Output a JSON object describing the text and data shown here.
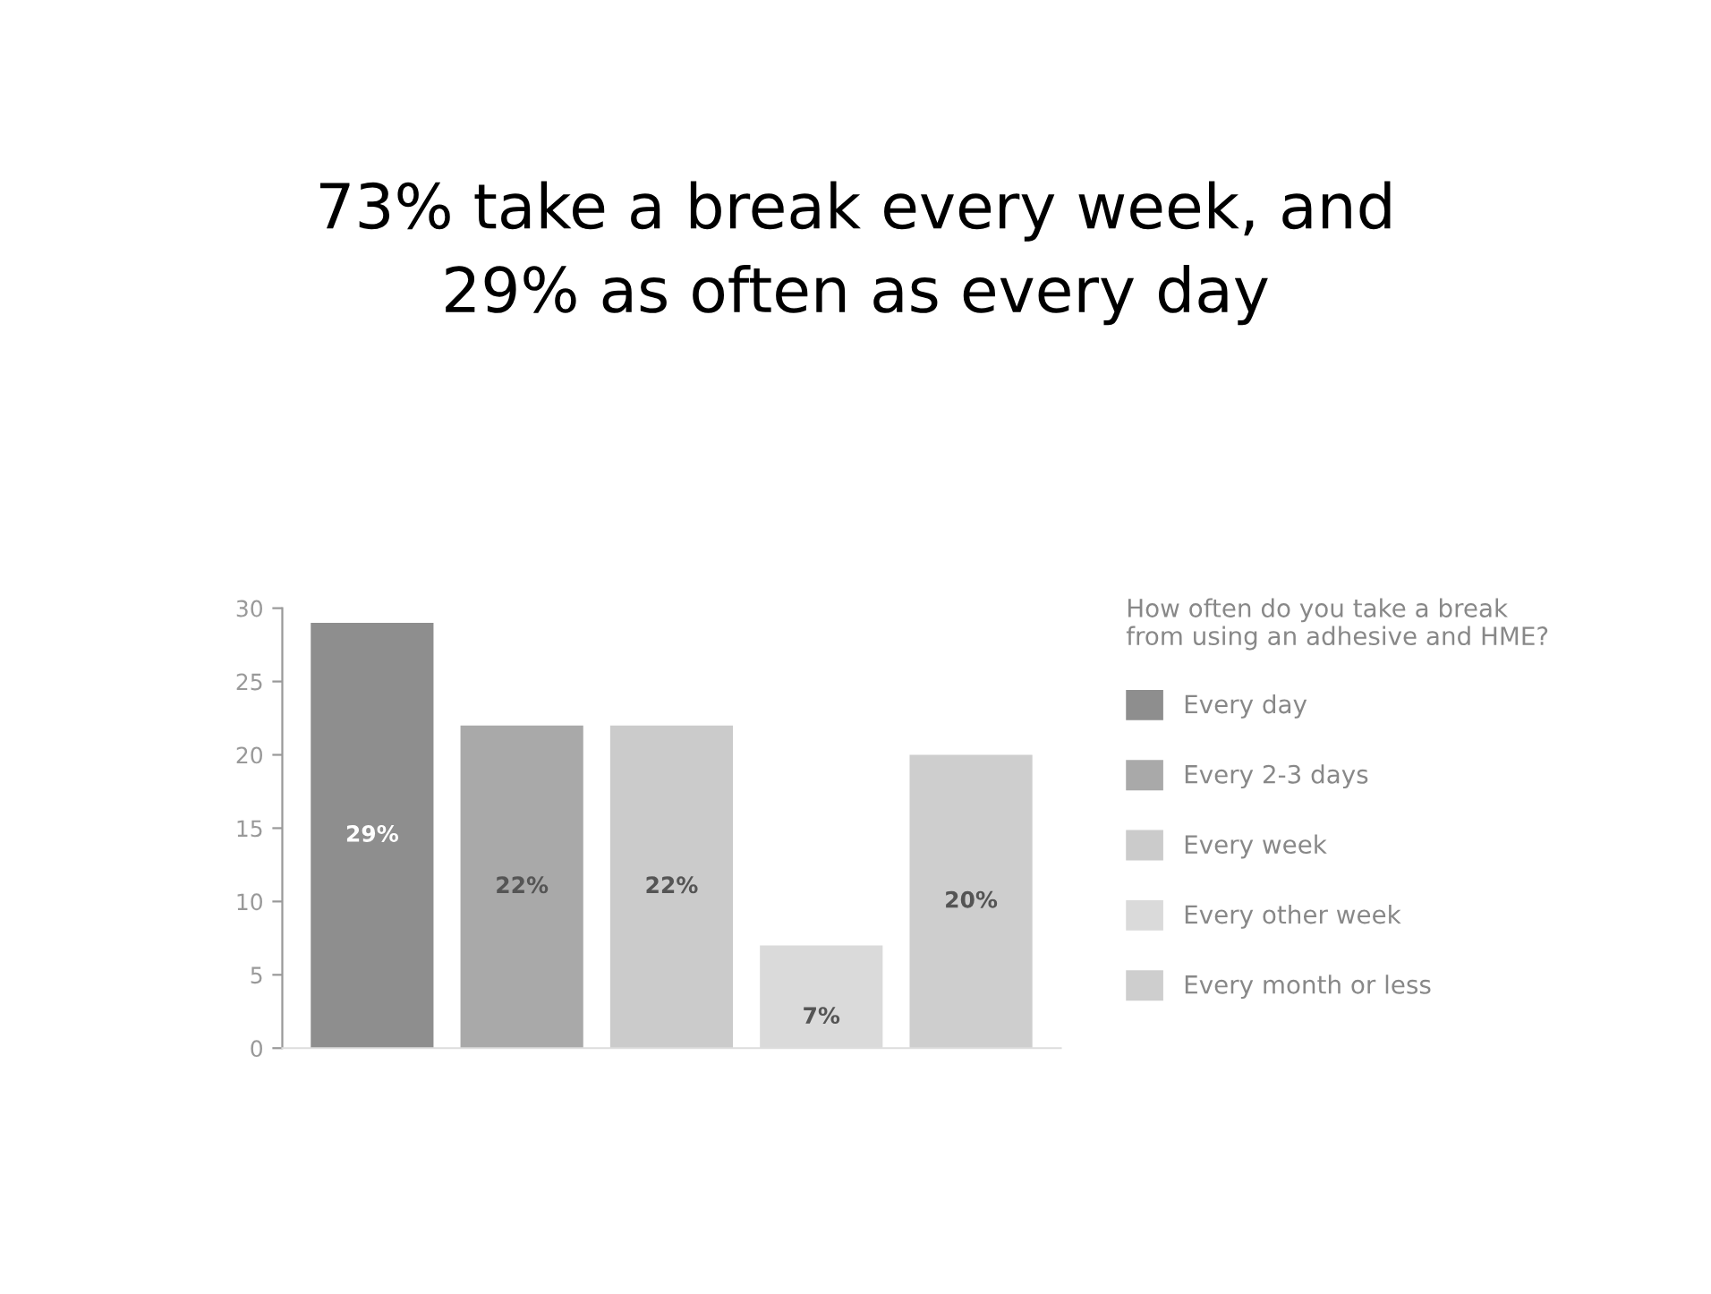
{
  "chart_data": {
    "type": "bar",
    "title": "73% take a break every week, and\n29% as often as every day",
    "legend_title": "How often do you take a break\nfrom using an adhesive and HME?",
    "categories": [
      null,
      null,
      null,
      null,
      null
    ],
    "series": [
      {
        "name": "Every day",
        "color": "#8e8e8e",
        "values": [
          29,
          null,
          null,
          null,
          null
        ],
        "value_labels": [
          "29%",
          null,
          null,
          null,
          null
        ]
      },
      {
        "name": "Every 2-3 days",
        "color": "#a9a9a9",
        "values": [
          null,
          22,
          null,
          null,
          null
        ],
        "value_labels": [
          null,
          "22%",
          null,
          null,
          null
        ]
      },
      {
        "name": "Every week",
        "color": "#cbcbcb",
        "values": [
          null,
          null,
          22,
          null,
          null
        ],
        "value_labels": [
          null,
          null,
          "22%",
          null,
          null
        ]
      },
      {
        "name": "Every other week",
        "color": "#dadada",
        "values": [
          null,
          null,
          null,
          7,
          null
        ],
        "value_labels": [
          null,
          null,
          null,
          "7%",
          null
        ]
      },
      {
        "name": "Every month or less",
        "color": "#cecece",
        "values": [
          null,
          null,
          null,
          null,
          20
        ],
        "value_labels": [
          null,
          null,
          null,
          null,
          "20%"
        ]
      }
    ],
    "ylim": [
      0,
      30
    ],
    "yticks": [
      0,
      5,
      10,
      15,
      20,
      25,
      30
    ],
    "grid": false,
    "legend": "right"
  }
}
